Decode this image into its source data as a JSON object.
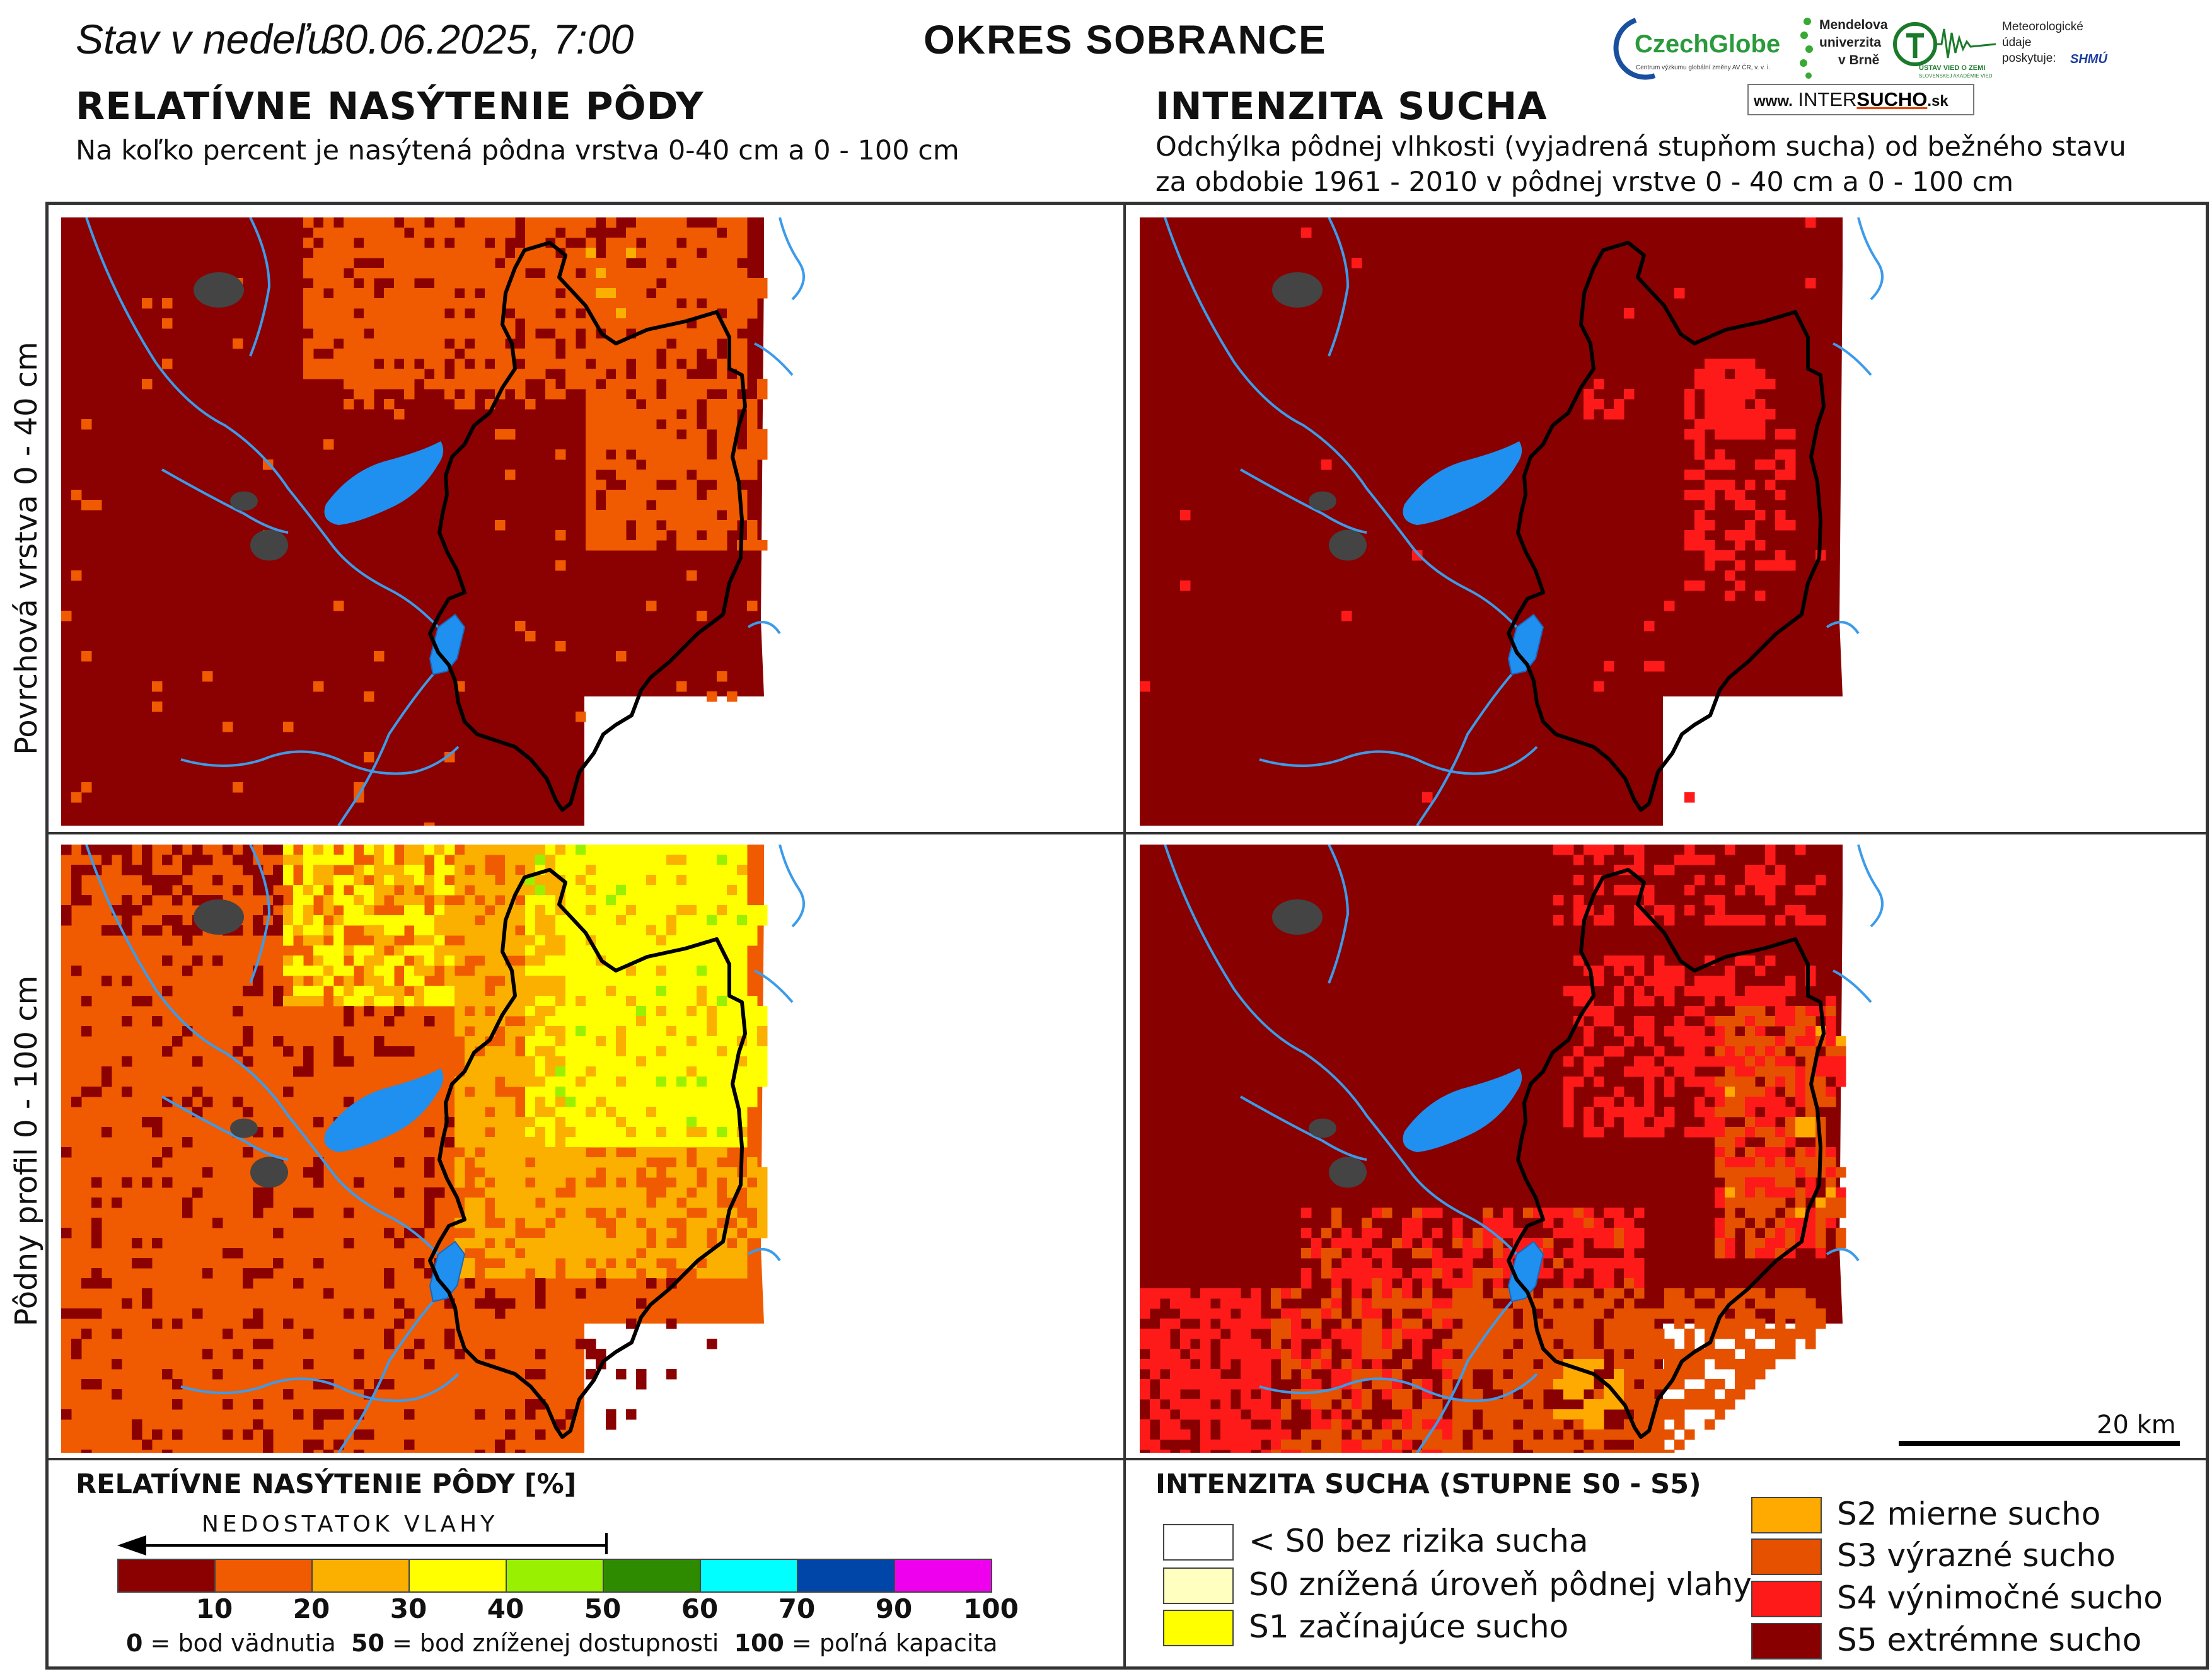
{
  "header": {
    "status_prefix": "Stav v nedeľu",
    "datetime": "30.06.2025, 7:00",
    "district": "OKRES  SOBRANCE"
  },
  "left_panel": {
    "heading": "RELATÍVNE NASÝTENIE PÔDY",
    "subtitle": "Na koľko percent je nasýtená pôdna vrstva 0-40 cm a 0 - 100 cm"
  },
  "right_panel": {
    "heading": "INTENZITA SUCHA",
    "subtitle_line1": "Odchýlka pôdnej vlhkosti (vyjadrená stupňom sucha) od bežného stavu",
    "subtitle_line2": "za obdobie 1961 - 2010 v pôdnej vrstve 0 - 40 cm a 0 - 100 cm"
  },
  "row_labels": {
    "top": "Povrchová vrstva 0 - 40 cm",
    "bottom": "Pôdny profil 0 - 100 cm"
  },
  "logos": {
    "czechglobe": "CzechGlobe",
    "czechglobe_caption": "Centrum výzkumu globální změny AV ČR, v. v. i.",
    "mendel_line1": "Mendelova",
    "mendel_line2": "univerzita",
    "mendel_line3": "v Brně",
    "ustav": "ÚSTAV VIED O ZEMI",
    "ustav_caption": "SLOVENSKEJ AKADÉMIE VIED",
    "met_line1": "Meteorologické",
    "met_line2": "údaje",
    "met_line3": "poskytuje:",
    "shmu": "SHMÚ",
    "web_prefix": "www.",
    "web_a": "INTER",
    "web_b": "SUCHO",
    "web_c": ".sk"
  },
  "scale_bar_label": "20 km",
  "saturation_legend": {
    "title": "RELATÍVNE NASÝTENIE PÔDY [%]",
    "arrow_label": "NEDOSTATOK VLAHY",
    "classes": [
      {
        "upper": "10",
        "color": "#8b0000"
      },
      {
        "upper": "20",
        "color": "#f05a00"
      },
      {
        "upper": "30",
        "color": "#fbb000"
      },
      {
        "upper": "40",
        "color": "#ffff00"
      },
      {
        "upper": "50",
        "color": "#99f000"
      },
      {
        "upper": "60",
        "color": "#2e8b00"
      },
      {
        "upper": "70",
        "color": "#00ffff"
      },
      {
        "upper": "90",
        "color": "#0046a8"
      },
      {
        "upper": "100",
        "color": "#ee00ee"
      }
    ],
    "note_v0": "0",
    "note_t0": " = bod vädnutia",
    "note_v50": "50",
    "note_t50": " = bod zníženej dostupnosti",
    "note_v100": "100",
    "note_t100": " = poľná kapacita"
  },
  "drought_legend": {
    "title": "INTENZITA SUCHA (STUPNE S0 - S5)",
    "classes": [
      {
        "label": "< S0 bez rizika sucha",
        "color": "#ffffff"
      },
      {
        "label": "S0 znížená úroveň pôdnej vlahy",
        "color": "#ffffc0"
      },
      {
        "label": "S1 začínajúce sucho",
        "color": "#ffff00"
      },
      {
        "label": "S2 mierne sucho",
        "color": "#ffaa00"
      },
      {
        "label": "S3 výrazné sucho",
        "color": "#e65100"
      },
      {
        "label": "S4 výnimočné sucho",
        "color": "#ff1a1a"
      },
      {
        "label": "S5 extrémne sucho",
        "color": "#880000"
      }
    ]
  },
  "colors": {
    "lake": "#1f8ff0",
    "river": "#3d9be9",
    "district_border": "#000000",
    "town": "#444444"
  }
}
